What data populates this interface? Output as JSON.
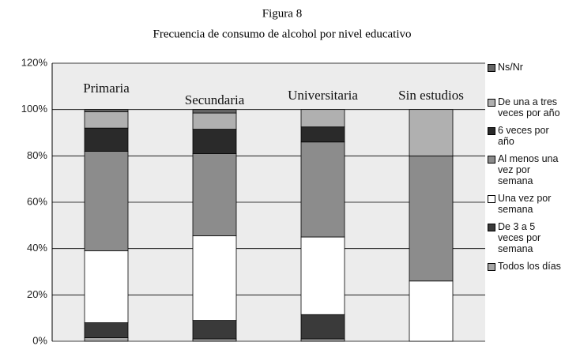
{
  "chart_data": {
    "type": "stacked_bar",
    "title": "Figura 8",
    "subtitle": "Frecuencia de consumo de alcohol por nivel educativo",
    "categories": [
      "Primaria",
      "Secundaria",
      "Universitaria",
      "Sin estudios"
    ],
    "series": [
      {
        "name": "Todos los días",
        "color": "#a6a6a6",
        "values": [
          1.5,
          1,
          1,
          0
        ]
      },
      {
        "name": "De 3 a 5 veces por semana",
        "color": "#3a3a3a",
        "values": [
          6.5,
          8,
          10.5,
          0
        ]
      },
      {
        "name": "Una vez por semana",
        "color": "#ffffff",
        "values": [
          31,
          36.5,
          33.5,
          26
        ]
      },
      {
        "name": "Al menos una vez por semana",
        "color": "#8c8c8c",
        "values": [
          43,
          35.5,
          41,
          54
        ]
      },
      {
        "name": "6 veces por año",
        "color": "#2a2a2a",
        "values": [
          10,
          10.5,
          6.5,
          0
        ]
      },
      {
        "name": "De una a tres veces por año",
        "color": "#b0b0b0",
        "values": [
          7,
          7,
          7.5,
          20
        ]
      },
      {
        "name": "Ns/Nr",
        "color": "#666666",
        "values": [
          1,
          1.5,
          0,
          0
        ]
      }
    ],
    "ylim": [
      0,
      120
    ],
    "yticks": [
      {
        "value": 0,
        "label": "0%"
      },
      {
        "value": 20,
        "label": "20%"
      },
      {
        "value": 40,
        "label": "40%"
      },
      {
        "value": 60,
        "label": "60%"
      },
      {
        "value": 80,
        "label": "80%"
      },
      {
        "value": 100,
        "label": "100%"
      },
      {
        "value": 120,
        "label": "120%"
      }
    ],
    "grid": true
  }
}
